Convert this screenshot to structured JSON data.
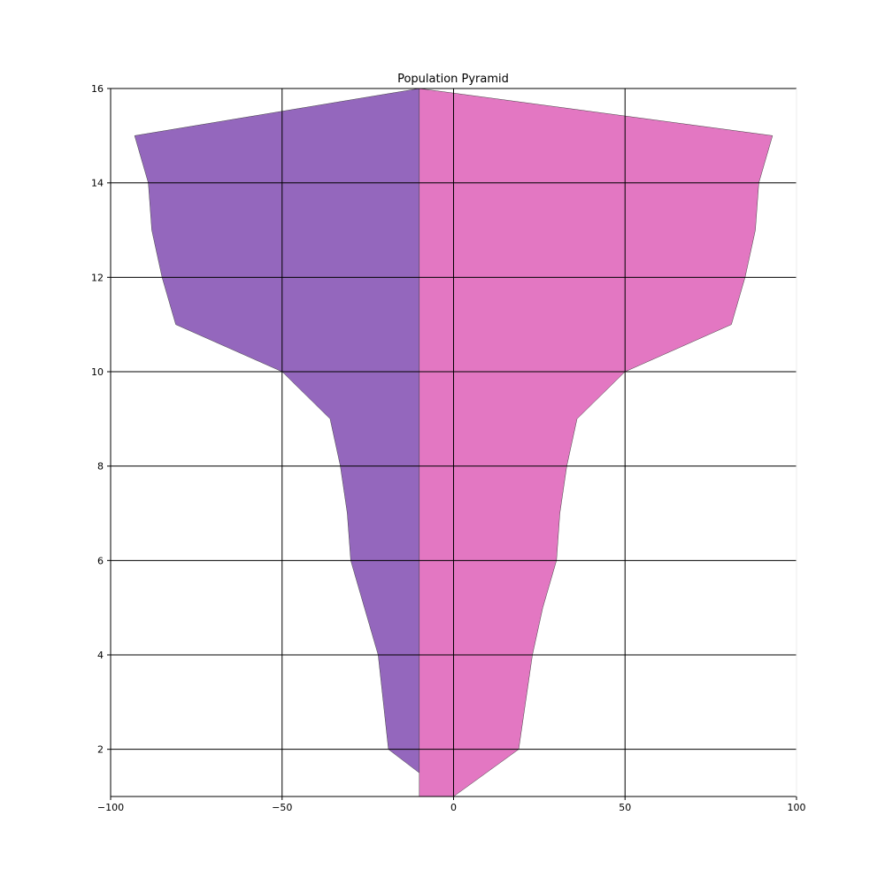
{
  "chart_data": {
    "type": "area",
    "title": "Population Pyramid",
    "xlabel": "",
    "ylabel": "",
    "xlim": [
      -100,
      100
    ],
    "ylim": [
      1,
      16
    ],
    "grid": true,
    "x_ticks": [
      -100,
      -50,
      0,
      50,
      100
    ],
    "x_tick_labels": [
      "−100",
      "−50",
      "0",
      "50",
      "100"
    ],
    "y_ticks": [
      2,
      4,
      6,
      8,
      10,
      12,
      14,
      16
    ],
    "y_tick_labels": [
      "2",
      "4",
      "6",
      "8",
      "10",
      "12",
      "14",
      "16"
    ],
    "series": [
      {
        "color": "#9467bd",
        "baseline": -10,
        "points": [
          {
            "x": -10,
            "y": 1.5
          },
          {
            "x": -19,
            "y": 2
          },
          {
            "x": -22,
            "y": 4
          },
          {
            "x": -26,
            "y": 5
          },
          {
            "x": -30,
            "y": 6
          },
          {
            "x": -31,
            "y": 7
          },
          {
            "x": -33,
            "y": 8
          },
          {
            "x": -36,
            "y": 9
          },
          {
            "x": -50,
            "y": 10
          },
          {
            "x": -81,
            "y": 11
          },
          {
            "x": -85,
            "y": 12
          },
          {
            "x": -88,
            "y": 13
          },
          {
            "x": -89,
            "y": 14
          },
          {
            "x": -93,
            "y": 15
          },
          {
            "x": -10,
            "y": 16
          }
        ]
      },
      {
        "color": "#e377c2",
        "baseline": -10,
        "points": [
          {
            "x": -10,
            "y": 1
          },
          {
            "x": 0,
            "y": 1
          },
          {
            "x": 19,
            "y": 2
          },
          {
            "x": 23,
            "y": 4
          },
          {
            "x": 26,
            "y": 5
          },
          {
            "x": 30,
            "y": 6
          },
          {
            "x": 31,
            "y": 7
          },
          {
            "x": 33,
            "y": 8
          },
          {
            "x": 36,
            "y": 9
          },
          {
            "x": 50,
            "y": 10
          },
          {
            "x": 81,
            "y": 11
          },
          {
            "x": 85,
            "y": 12
          },
          {
            "x": 88,
            "y": 13
          },
          {
            "x": 89,
            "y": 14
          },
          {
            "x": 93,
            "y": 15
          },
          {
            "x": -10,
            "y": 16
          }
        ]
      }
    ]
  }
}
